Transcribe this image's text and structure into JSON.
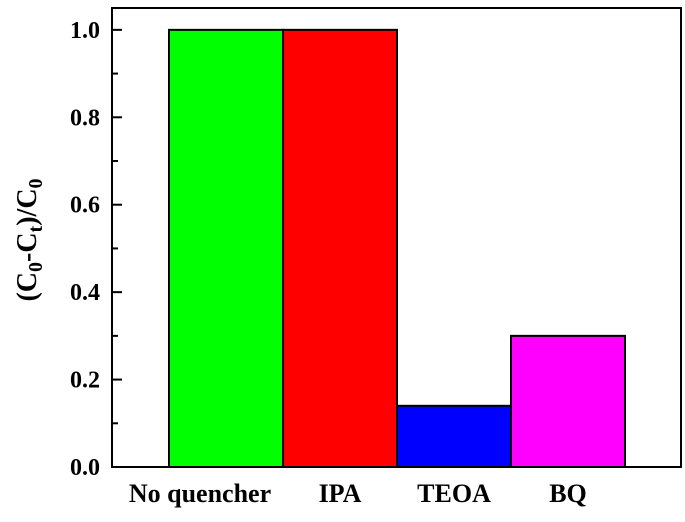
{
  "chart_data": {
    "type": "bar",
    "categories": [
      "No quencher",
      "IPA",
      "TEOA",
      "BQ"
    ],
    "values": [
      1.0,
      1.0,
      0.14,
      0.3
    ],
    "colors": [
      "#00ff00",
      "#ff0000",
      "#0000ff",
      "#ff00ff"
    ],
    "ylabel": "(C0-Ct)/C0",
    "ylabel_parts": [
      {
        "text": "(C",
        "sub": false
      },
      {
        "text": "0",
        "sub": true
      },
      {
        "text": "-C",
        "sub": false
      },
      {
        "text": "t",
        "sub": true
      },
      {
        "text": ")/C",
        "sub": false
      },
      {
        "text": "0",
        "sub": true
      }
    ],
    "ylim": [
      0,
      1.05
    ],
    "yticks": [
      0.0,
      0.2,
      0.4,
      0.6,
      0.8,
      1.0
    ],
    "ytick_labels": [
      "0.0",
      "0.2",
      "0.4",
      "0.6",
      "0.8",
      "1.0"
    ],
    "grid": false,
    "legend": "none"
  }
}
